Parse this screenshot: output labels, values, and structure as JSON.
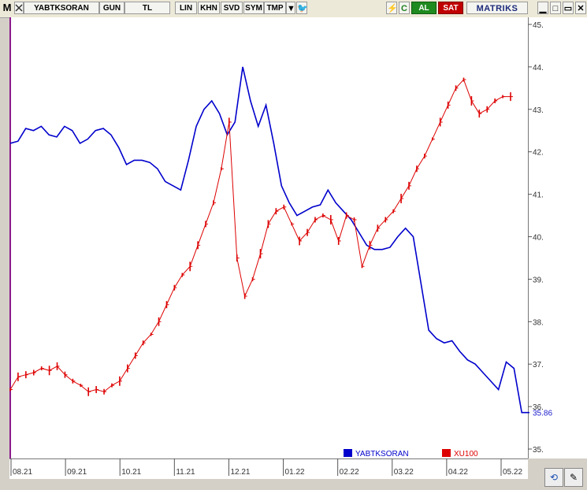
{
  "toolbar": {
    "m_label": "M",
    "symbol": "YABTKSORAN",
    "period": "GUN",
    "currency": "TL",
    "lin": "LIN",
    "khn": "KHN",
    "svd": "SVD",
    "sym": "SYM",
    "tmp": "TMP",
    "dropdown_icon": "chevron-down-icon",
    "twitter_icon": "twitter-icon",
    "al": "AL",
    "sat": "SAT",
    "logo": "MATRIKS",
    "colors": {
      "al": "#1f8a1f",
      "sat": "#c00000"
    }
  },
  "chart_data": {
    "type": "line",
    "x_tick_labels": [
      "08.21",
      "09.21",
      "10.21",
      "11.21",
      "12.21",
      "01.22",
      "02.22",
      "03.22",
      "04.22",
      "05.22"
    ],
    "y_tick_labels": [
      "45.",
      "44.",
      "43.",
      "42.",
      "41.",
      "40.",
      "39.",
      "38.",
      "37.",
      "36.",
      "35."
    ],
    "ylim": [
      35,
      45
    ],
    "last_value_label": "35.86",
    "series": [
      {
        "name": "YABTKSORAN",
        "color": "#0000cc",
        "values": [
          42.2,
          42.25,
          42.55,
          42.5,
          42.6,
          42.4,
          42.35,
          42.6,
          42.5,
          42.2,
          42.3,
          42.5,
          42.55,
          42.4,
          42.1,
          41.7,
          41.8,
          41.8,
          41.75,
          41.6,
          41.3,
          41.2,
          41.1,
          41.8,
          42.6,
          43.0,
          43.2,
          42.9,
          42.4,
          42.7,
          44.0,
          43.2,
          42.6,
          43.1,
          42.2,
          41.2,
          40.8,
          40.5,
          40.6,
          40.7,
          40.75,
          41.1,
          40.8,
          40.6,
          40.4,
          40.1,
          39.8,
          39.7,
          39.7,
          39.75,
          40.0,
          40.2,
          40.0,
          38.9,
          37.8,
          37.6,
          37.5,
          37.55,
          37.3,
          37.1,
          37.0,
          36.8,
          36.6,
          36.4,
          37.05,
          36.9,
          35.86,
          35.86
        ]
      },
      {
        "name": "XU100",
        "color": "#dd0000",
        "values": [
          36.4,
          36.7,
          36.75,
          36.8,
          36.9,
          36.85,
          36.95,
          36.75,
          36.6,
          36.5,
          36.35,
          36.4,
          36.35,
          36.5,
          36.6,
          36.9,
          37.2,
          37.5,
          37.7,
          38.0,
          38.4,
          38.8,
          39.1,
          39.3,
          39.8,
          40.3,
          40.8,
          41.6,
          42.7,
          39.5,
          38.6,
          39.0,
          39.6,
          40.3,
          40.6,
          40.7,
          40.3,
          39.9,
          40.1,
          40.4,
          40.5,
          40.4,
          39.9,
          40.5,
          40.4,
          39.3,
          39.8,
          40.2,
          40.4,
          40.6,
          40.9,
          41.2,
          41.6,
          41.9,
          42.3,
          42.7,
          43.1,
          43.5,
          43.7,
          43.2,
          42.9,
          43.0,
          43.2,
          43.3,
          43.3
        ]
      }
    ],
    "legend": [
      {
        "name": "YABTKSORAN",
        "color": "#0000cc"
      },
      {
        "name": "XU100",
        "color": "#dd0000"
      }
    ],
    "legend_placement": "bottom-right",
    "grid": false
  }
}
